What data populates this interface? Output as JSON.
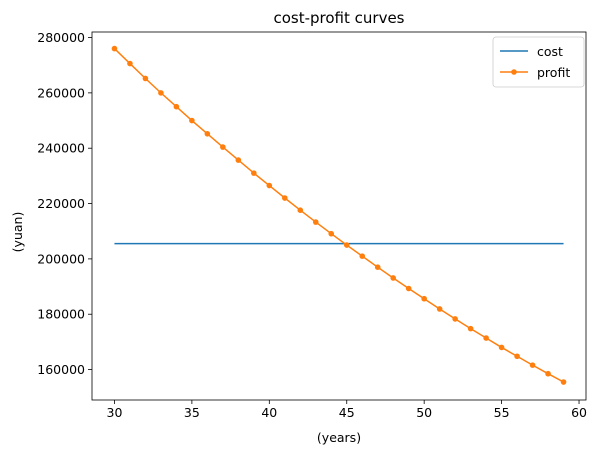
{
  "chart_data": {
    "type": "line",
    "title": "cost-profit curves",
    "xlabel": "(years)",
    "ylabel": "(yuan)",
    "xlim": [
      28.55,
      60.45
    ],
    "ylim": [
      149000,
      282000
    ],
    "x_ticks": [
      30,
      35,
      40,
      45,
      50,
      55,
      60
    ],
    "y_ticks": [
      160000,
      180000,
      200000,
      220000,
      240000,
      260000,
      280000
    ],
    "grid": false,
    "legend_position": "top-right",
    "series": [
      {
        "name": "cost",
        "color": "#1f77b4",
        "marker": "none",
        "x": [
          30,
          59
        ],
        "y": [
          205500,
          205500
        ]
      },
      {
        "name": "profit",
        "color": "#ff7f0e",
        "marker": "circle",
        "x": [
          30,
          31,
          32,
          33,
          34,
          35,
          36,
          37,
          38,
          39,
          40,
          41,
          42,
          43,
          44,
          45,
          46,
          47,
          48,
          49,
          50,
          51,
          52,
          53,
          54,
          55,
          56,
          57,
          58,
          59
        ],
        "y": [
          276000,
          270600,
          265200,
          260000,
          255000,
          250000,
          245200,
          240400,
          235700,
          231000,
          226500,
          222000,
          217600,
          213300,
          209100,
          205000,
          201000,
          197000,
          193100,
          189300,
          185600,
          181900,
          178300,
          174800,
          171400,
          168000,
          164800,
          161600,
          158500,
          155500
        ]
      }
    ]
  }
}
